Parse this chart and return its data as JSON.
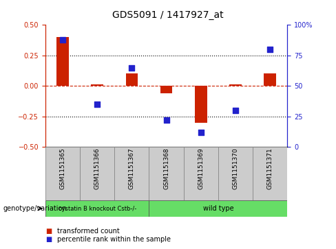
{
  "title": "GDS5091 / 1417927_at",
  "samples": [
    "GSM1151365",
    "GSM1151366",
    "GSM1151367",
    "GSM1151368",
    "GSM1151369",
    "GSM1151370",
    "GSM1151371"
  ],
  "red_bars": [
    0.4,
    0.01,
    0.1,
    -0.06,
    -0.3,
    0.01,
    0.1
  ],
  "blue_dots": [
    88,
    35,
    65,
    22,
    12,
    30,
    80
  ],
  "ylim_left": [
    -0.5,
    0.5
  ],
  "ylim_right": [
    0,
    100
  ],
  "yticks_left": [
    -0.5,
    -0.25,
    0.0,
    0.25,
    0.5
  ],
  "yticks_right": [
    0,
    25,
    50,
    75,
    100
  ],
  "ytick_labels_right": [
    "0",
    "25",
    "50",
    "75",
    "100%"
  ],
  "group1_label": "cystatin B knockout Cstb-/-",
  "group2_label": "wild type",
  "group_label_prefix": "genotype/variation",
  "red_color": "#cc2200",
  "blue_color": "#2222cc",
  "green_color": "#66dd66",
  "gray_color": "#cccccc",
  "bg_figure": "#ffffff",
  "legend_red": "transformed count",
  "legend_blue": "percentile rank within the sample",
  "bar_width": 0.35,
  "dot_size": 30
}
